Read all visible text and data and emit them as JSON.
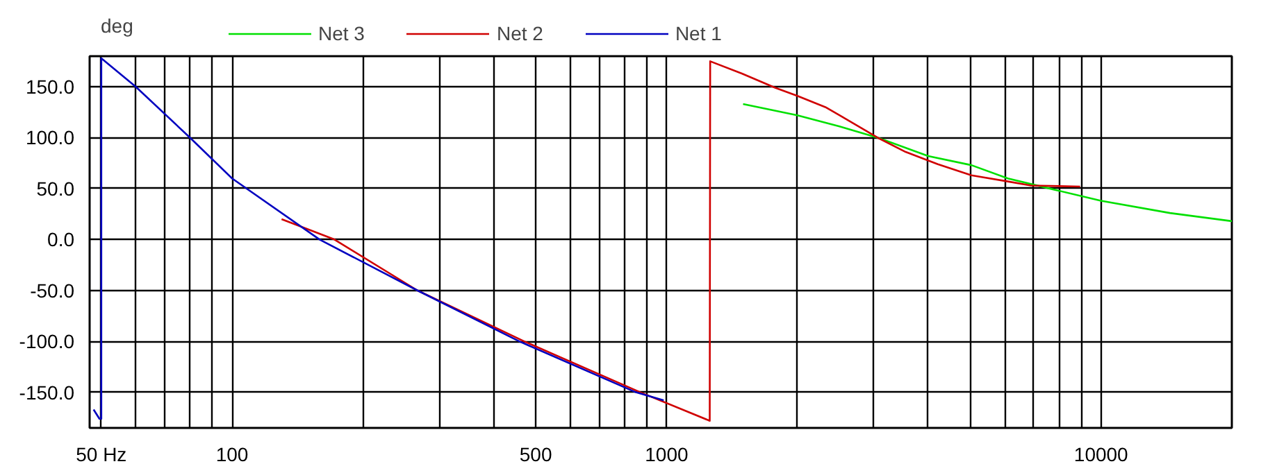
{
  "chart_data": {
    "type": "line",
    "ylabel": "deg",
    "log": "x",
    "grid": true,
    "legend": "top",
    "marker": "none",
    "line_style": "solid",
    "xlim": [
      47,
      20000
    ],
    "ylim": [
      -185,
      180
    ],
    "xticks": [
      {
        "value": 50,
        "label": "50 Hz"
      },
      {
        "value": 60,
        "label": null
      },
      {
        "value": 70,
        "label": null
      },
      {
        "value": 80,
        "label": null
      },
      {
        "value": 90,
        "label": null
      },
      100,
      {
        "value": 200,
        "label": null
      },
      {
        "value": 300,
        "label": null
      },
      {
        "value": 400,
        "label": null
      },
      500,
      {
        "value": 600,
        "label": null
      },
      {
        "value": 700,
        "label": null
      },
      {
        "value": 800,
        "label": null
      },
      {
        "value": 900,
        "label": null
      },
      1000,
      {
        "value": 2000,
        "label": null
      },
      {
        "value": 3000,
        "label": null
      },
      {
        "value": 4000,
        "label": null
      },
      {
        "value": 5000,
        "label": null
      },
      {
        "value": 6000,
        "label": null
      },
      {
        "value": 7000,
        "label": null
      },
      {
        "value": 8000,
        "label": null
      },
      {
        "value": 9000,
        "label": null
      },
      10000
    ],
    "yticks": [
      {
        "value": -150,
        "label": "-150.0"
      },
      {
        "value": -100,
        "label": "-100.0"
      },
      {
        "value": -50,
        "label": "-50.0"
      },
      {
        "value": 0,
        "label": "0.0"
      },
      {
        "value": 50,
        "label": "50.0"
      },
      {
        "value": 100,
        "label": "100.0"
      },
      {
        "value": 150,
        "label": "150.0"
      }
    ],
    "series": [
      {
        "name": "Net 3",
        "color": "#00e000",
        "x": [
          1500,
          2000,
          2500,
          3060,
          4000,
          5030,
          6100,
          7800,
          10000,
          14400,
          20000
        ],
        "values": [
          133,
          122,
          111,
          100,
          82,
          73,
          60,
          49,
          38,
          26,
          18
        ]
      },
      {
        "name": "Net 2",
        "color": "#d00000",
        "x": [
          130,
          172,
          267,
          470,
          870,
          1257,
          1260,
          1490,
          1778,
          2000,
          2320,
          2500,
          3060,
          3550,
          4210,
          5030,
          6100,
          6900,
          8950
        ],
        "values": [
          20,
          0,
          -50,
          -100,
          -150,
          -178,
          175,
          163,
          149,
          141,
          130,
          122,
          100,
          86,
          74,
          63,
          57,
          53,
          52
        ]
      },
      {
        "name": "Net 1",
        "color": "#0000c0",
        "x": [
          48,
          49.5,
          50,
          50,
          60,
          80,
          100,
          159,
          267,
          458,
          850,
          985
        ],
        "values": [
          -167,
          -176,
          -176,
          178,
          150,
          100,
          60,
          0,
          -50,
          -100,
          -150,
          -158
        ]
      }
    ]
  }
}
